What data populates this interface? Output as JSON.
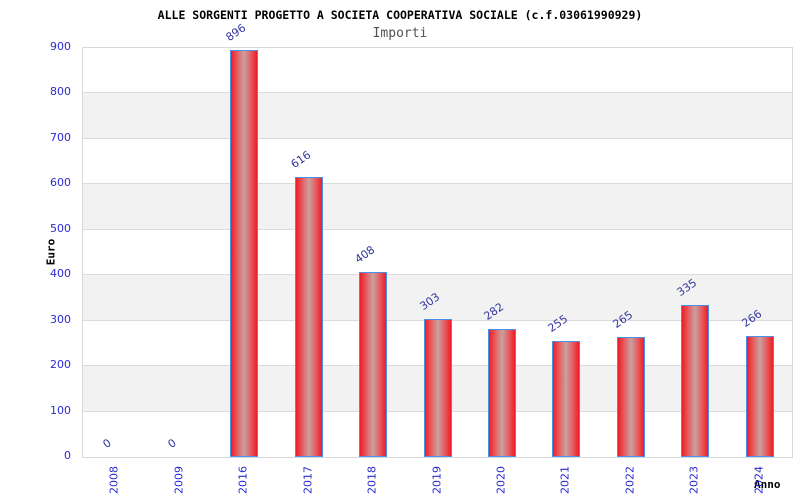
{
  "title": "ALLE SORGENTI PROGETTO A SOCIETA COOPERATIVA SOCIALE (c.f.03061990929)",
  "subtitle": "Importi",
  "axes": {
    "y_label": "Euro",
    "x_label": "Anno"
  },
  "chart_data": {
    "type": "bar",
    "title": "ALLE SORGENTI PROGETTO A SOCIETA COOPERATIVA SOCIALE (c.f.03061990929)",
    "subtitle": "Importi",
    "xlabel": "Anno",
    "ylabel": "Euro",
    "categories": [
      "2008",
      "2009",
      "2016",
      "2017",
      "2018",
      "2019",
      "2020",
      "2021",
      "2022",
      "2023",
      "2024"
    ],
    "values": [
      0,
      0,
      896,
      616,
      408,
      303,
      282,
      255,
      265,
      335,
      266
    ],
    "ylim": [
      0,
      900
    ],
    "ytick_step": 100,
    "yticks": [
      0,
      100,
      200,
      300,
      400,
      500,
      600,
      700,
      800,
      900
    ],
    "grid": "horizontal-bands-alternating",
    "legend": "none",
    "bar_labels_rotated": true,
    "x_labels_rotated": true
  },
  "colors": {
    "title": "#000000",
    "subtitle": "#525252",
    "tick_label": "#2b2bd0",
    "value_label": "#34349e",
    "bar_red": "#ee1c22",
    "bar_mid": "#e7575c",
    "bar_center": "#c9a0a0",
    "bar_border": "#4a90e8",
    "band_alt": "#f2f2f2",
    "band_base": "#ffffff",
    "gridline": "#dcdcdc",
    "plot_border": "#d9d9d9",
    "axis_title": "#000000",
    "background": "#ffffff"
  }
}
